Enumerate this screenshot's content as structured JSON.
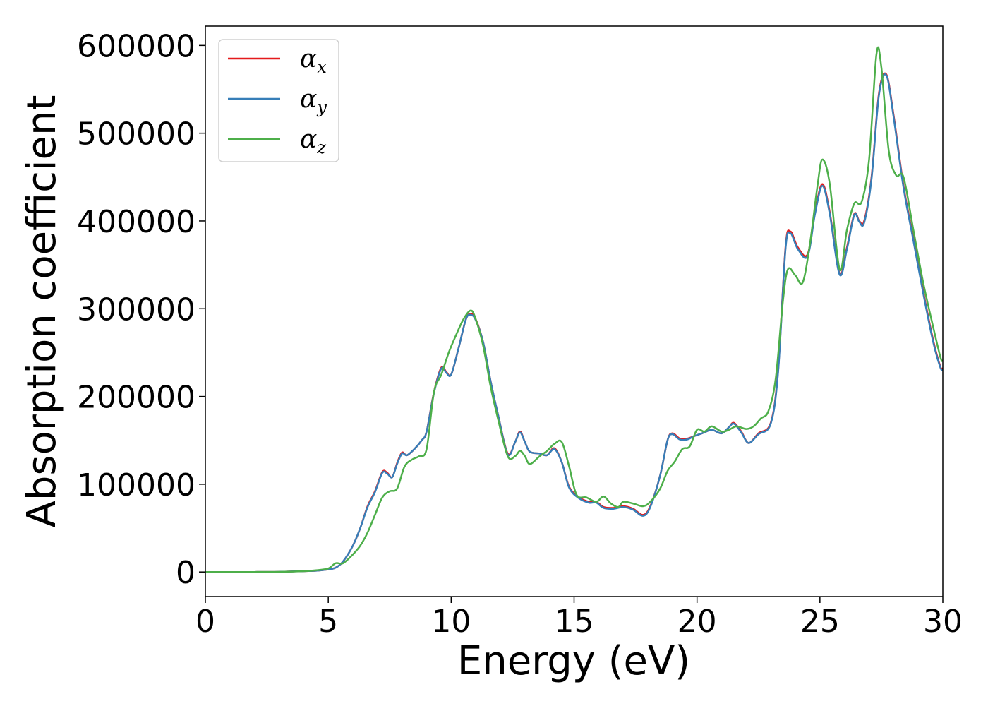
{
  "chart_data": {
    "type": "line",
    "xlabel": "Energy (eV)",
    "ylabel": "Absorption coefficient",
    "xlim": [
      0,
      30
    ],
    "ylim": [
      -28000,
      622000
    ],
    "xticks": [
      0,
      5,
      10,
      15,
      20,
      25,
      30
    ],
    "yticks": [
      0,
      100000,
      200000,
      300000,
      400000,
      500000,
      600000
    ],
    "grid": false,
    "legend_position": "top-left",
    "series": [
      {
        "name": "αx",
        "symbol": "α",
        "subscript": "x",
        "color": "#e41a1c",
        "points": [
          [
            0,
            0
          ],
          [
            2,
            0
          ],
          [
            3,
            200
          ],
          [
            4,
            1000
          ],
          [
            4.5,
            1500
          ],
          [
            5,
            3000
          ],
          [
            5.3,
            5000
          ],
          [
            5.6,
            12000
          ],
          [
            6.0,
            30000
          ],
          [
            6.3,
            50000
          ],
          [
            6.6,
            75000
          ],
          [
            6.9,
            92000
          ],
          [
            7.2,
            114000
          ],
          [
            7.4,
            113000
          ],
          [
            7.6,
            108000
          ],
          [
            7.8,
            124000
          ],
          [
            8.0,
            136000
          ],
          [
            8.2,
            133000
          ],
          [
            8.5,
            140000
          ],
          [
            8.8,
            150000
          ],
          [
            9.0,
            160000
          ],
          [
            9.3,
            205000
          ],
          [
            9.6,
            233000
          ],
          [
            9.8,
            228000
          ],
          [
            10.0,
            225000
          ],
          [
            10.3,
            255000
          ],
          [
            10.6,
            288000
          ],
          [
            10.8,
            294000
          ],
          [
            11.0,
            288000
          ],
          [
            11.3,
            262000
          ],
          [
            11.6,
            218000
          ],
          [
            11.9,
            180000
          ],
          [
            12.3,
            135000
          ],
          [
            12.6,
            148000
          ],
          [
            12.8,
            160000
          ],
          [
            13.0,
            148000
          ],
          [
            13.2,
            137000
          ],
          [
            13.6,
            135000
          ],
          [
            13.9,
            133000
          ],
          [
            14.2,
            141000
          ],
          [
            14.5,
            125000
          ],
          [
            14.8,
            97000
          ],
          [
            15.2,
            85000
          ],
          [
            15.6,
            80000
          ],
          [
            15.9,
            80000
          ],
          [
            16.2,
            74000
          ],
          [
            16.6,
            73000
          ],
          [
            17.0,
            75000
          ],
          [
            17.4,
            72000
          ],
          [
            17.8,
            65000
          ],
          [
            18.1,
            75000
          ],
          [
            18.5,
            110000
          ],
          [
            18.8,
            150000
          ],
          [
            19.0,
            158000
          ],
          [
            19.3,
            152000
          ],
          [
            19.6,
            152000
          ],
          [
            19.9,
            155000
          ],
          [
            20.2,
            158000
          ],
          [
            20.6,
            162000
          ],
          [
            21.0,
            158000
          ],
          [
            21.3,
            165000
          ],
          [
            21.5,
            170000
          ],
          [
            21.8,
            160000
          ],
          [
            22.1,
            147000
          ],
          [
            22.5,
            158000
          ],
          [
            23.0,
            170000
          ],
          [
            23.3,
            230000
          ],
          [
            23.6,
            370000
          ],
          [
            23.8,
            388000
          ],
          [
            24.1,
            370000
          ],
          [
            24.5,
            362000
          ],
          [
            24.8,
            410000
          ],
          [
            25.1,
            442000
          ],
          [
            25.4,
            410000
          ],
          [
            25.8,
            340000
          ],
          [
            26.1,
            370000
          ],
          [
            26.4,
            408000
          ],
          [
            26.6,
            400000
          ],
          [
            26.8,
            400000
          ],
          [
            27.1,
            450000
          ],
          [
            27.4,
            545000
          ],
          [
            27.7,
            567000
          ],
          [
            28.0,
            520000
          ],
          [
            28.4,
            440000
          ],
          [
            28.8,
            380000
          ],
          [
            29.2,
            320000
          ],
          [
            29.6,
            265000
          ],
          [
            29.9,
            234000
          ],
          [
            30.0,
            232000
          ]
        ]
      },
      {
        "name": "αy",
        "symbol": "α",
        "subscript": "y",
        "color": "#377eb8",
        "points": [
          [
            0,
            0
          ],
          [
            2,
            0
          ],
          [
            3,
            200
          ],
          [
            4,
            1000
          ],
          [
            4.5,
            1500
          ],
          [
            5,
            3000
          ],
          [
            5.3,
            5000
          ],
          [
            5.6,
            12000
          ],
          [
            6.0,
            30000
          ],
          [
            6.3,
            50000
          ],
          [
            6.6,
            74000
          ],
          [
            6.9,
            91000
          ],
          [
            7.2,
            113000
          ],
          [
            7.4,
            112000
          ],
          [
            7.6,
            108000
          ],
          [
            7.8,
            123000
          ],
          [
            8.0,
            135000
          ],
          [
            8.2,
            133000
          ],
          [
            8.5,
            140000
          ],
          [
            8.8,
            150000
          ],
          [
            9.0,
            160000
          ],
          [
            9.3,
            204000
          ],
          [
            9.6,
            232000
          ],
          [
            9.8,
            227000
          ],
          [
            10.0,
            225000
          ],
          [
            10.3,
            255000
          ],
          [
            10.6,
            288000
          ],
          [
            10.8,
            293000
          ],
          [
            11.0,
            287000
          ],
          [
            11.3,
            262000
          ],
          [
            11.6,
            218000
          ],
          [
            11.9,
            180000
          ],
          [
            12.3,
            134000
          ],
          [
            12.6,
            148000
          ],
          [
            12.8,
            159000
          ],
          [
            13.0,
            148000
          ],
          [
            13.2,
            137000
          ],
          [
            13.6,
            135000
          ],
          [
            13.9,
            133000
          ],
          [
            14.2,
            140000
          ],
          [
            14.5,
            125000
          ],
          [
            14.8,
            96000
          ],
          [
            15.2,
            84000
          ],
          [
            15.6,
            79000
          ],
          [
            15.9,
            79000
          ],
          [
            16.2,
            73000
          ],
          [
            16.6,
            72000
          ],
          [
            17.0,
            74000
          ],
          [
            17.4,
            71000
          ],
          [
            17.8,
            64000
          ],
          [
            18.1,
            74000
          ],
          [
            18.5,
            110000
          ],
          [
            18.8,
            150000
          ],
          [
            19.0,
            157000
          ],
          [
            19.3,
            151000
          ],
          [
            19.6,
            151000
          ],
          [
            19.9,
            155000
          ],
          [
            20.2,
            158000
          ],
          [
            20.6,
            162000
          ],
          [
            21.0,
            158000
          ],
          [
            21.3,
            165000
          ],
          [
            21.5,
            169000
          ],
          [
            21.8,
            159000
          ],
          [
            22.1,
            147000
          ],
          [
            22.5,
            157000
          ],
          [
            23.0,
            169000
          ],
          [
            23.3,
            228000
          ],
          [
            23.6,
            368000
          ],
          [
            23.8,
            386000
          ],
          [
            24.1,
            368000
          ],
          [
            24.5,
            360000
          ],
          [
            24.8,
            408000
          ],
          [
            25.1,
            440000
          ],
          [
            25.4,
            408000
          ],
          [
            25.8,
            339000
          ],
          [
            26.1,
            368000
          ],
          [
            26.4,
            407000
          ],
          [
            26.6,
            399000
          ],
          [
            26.8,
            398000
          ],
          [
            27.1,
            448000
          ],
          [
            27.4,
            543000
          ],
          [
            27.7,
            566000
          ],
          [
            28.0,
            518000
          ],
          [
            28.4,
            438000
          ],
          [
            28.8,
            378000
          ],
          [
            29.2,
            318000
          ],
          [
            29.6,
            263000
          ],
          [
            29.9,
            233000
          ],
          [
            30.0,
            231000
          ]
        ]
      },
      {
        "name": "αz",
        "symbol": "α",
        "subscript": "z",
        "color": "#4daf4a",
        "points": [
          [
            0,
            0
          ],
          [
            2,
            0
          ],
          [
            3,
            200
          ],
          [
            4,
            1000
          ],
          [
            4.5,
            2000
          ],
          [
            5,
            4000
          ],
          [
            5.3,
            10000
          ],
          [
            5.6,
            10000
          ],
          [
            6.0,
            20000
          ],
          [
            6.3,
            30000
          ],
          [
            6.6,
            45000
          ],
          [
            6.9,
            65000
          ],
          [
            7.2,
            85000
          ],
          [
            7.5,
            92000
          ],
          [
            7.8,
            95000
          ],
          [
            8.1,
            120000
          ],
          [
            8.4,
            128000
          ],
          [
            8.7,
            132000
          ],
          [
            9.0,
            140000
          ],
          [
            9.3,
            205000
          ],
          [
            9.6,
            225000
          ],
          [
            9.9,
            250000
          ],
          [
            10.2,
            270000
          ],
          [
            10.5,
            288000
          ],
          [
            10.8,
            298000
          ],
          [
            11.0,
            288000
          ],
          [
            11.3,
            258000
          ],
          [
            11.6,
            212000
          ],
          [
            11.9,
            175000
          ],
          [
            12.3,
            132000
          ],
          [
            12.6,
            132000
          ],
          [
            12.8,
            138000
          ],
          [
            13.0,
            132000
          ],
          [
            13.2,
            123000
          ],
          [
            13.6,
            132000
          ],
          [
            13.9,
            138000
          ],
          [
            14.2,
            146000
          ],
          [
            14.5,
            148000
          ],
          [
            14.8,
            120000
          ],
          [
            15.1,
            88000
          ],
          [
            15.5,
            85000
          ],
          [
            15.9,
            80000
          ],
          [
            16.2,
            86000
          ],
          [
            16.5,
            78000
          ],
          [
            16.8,
            74000
          ],
          [
            17.0,
            80000
          ],
          [
            17.4,
            78000
          ],
          [
            17.8,
            75000
          ],
          [
            18.1,
            80000
          ],
          [
            18.5,
            95000
          ],
          [
            18.8,
            115000
          ],
          [
            19.1,
            126000
          ],
          [
            19.4,
            140000
          ],
          [
            19.7,
            143000
          ],
          [
            20.0,
            162000
          ],
          [
            20.3,
            160000
          ],
          [
            20.6,
            166000
          ],
          [
            21.0,
            160000
          ],
          [
            21.3,
            162000
          ],
          [
            21.6,
            166000
          ],
          [
            22.0,
            163000
          ],
          [
            22.3,
            166000
          ],
          [
            22.6,
            175000
          ],
          [
            22.9,
            183000
          ],
          [
            23.2,
            220000
          ],
          [
            23.5,
            310000
          ],
          [
            23.7,
            345000
          ],
          [
            24.0,
            338000
          ],
          [
            24.3,
            330000
          ],
          [
            24.6,
            375000
          ],
          [
            24.9,
            440000
          ],
          [
            25.1,
            470000
          ],
          [
            25.4,
            442000
          ],
          [
            25.8,
            345000
          ],
          [
            26.1,
            390000
          ],
          [
            26.4,
            420000
          ],
          [
            26.7,
            422000
          ],
          [
            27.0,
            470000
          ],
          [
            27.3,
            590000
          ],
          [
            27.5,
            575000
          ],
          [
            27.8,
            480000
          ],
          [
            28.1,
            452000
          ],
          [
            28.4,
            450000
          ],
          [
            28.8,
            390000
          ],
          [
            29.2,
            330000
          ],
          [
            29.6,
            280000
          ],
          [
            29.9,
            245000
          ],
          [
            30.0,
            240000
          ]
        ]
      }
    ]
  }
}
